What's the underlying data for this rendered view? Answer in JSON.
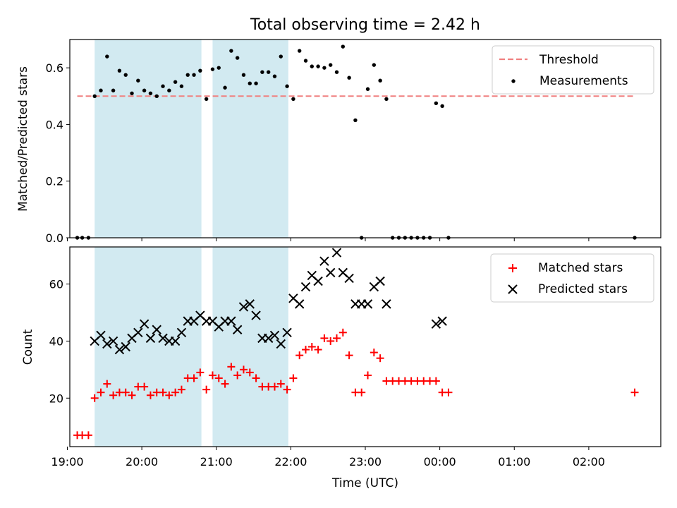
{
  "title": "Total observing time = 2.42 h",
  "colors": {
    "threshold": "#f08080",
    "measurement": "#000000",
    "matched": "#ff0000",
    "predicted": "#000000",
    "shade": "#add8e6"
  },
  "chart_data": [
    {
      "type": "scatter",
      "ylabel": "Matched/Predicted stars",
      "ylim": [
        0,
        0.7
      ],
      "yticks": [
        "0.0",
        "0.2",
        "0.4",
        "0.6"
      ],
      "xlim": [
        "19:02",
        "02:58"
      ],
      "shaded_intervals": [
        [
          "19:22",
          "20:48"
        ],
        [
          "20:57",
          "21:58"
        ]
      ],
      "legend": {
        "position": "top-right",
        "entries": [
          "Threshold",
          "Measurements"
        ]
      },
      "threshold": {
        "name": "Threshold",
        "value": 0.5,
        "x_range": [
          "19:08",
          "02:37"
        ]
      },
      "series": [
        {
          "name": "Measurements",
          "x": [
            "19:08",
            "19:12",
            "19:17",
            "19:22",
            "19:27",
            "19:32",
            "19:37",
            "19:42",
            "19:47",
            "19:52",
            "19:57",
            "20:02",
            "20:07",
            "20:12",
            "20:17",
            "20:22",
            "20:27",
            "20:32",
            "20:37",
            "20:42",
            "20:47",
            "20:52",
            "20:57",
            "21:02",
            "21:07",
            "21:12",
            "21:17",
            "21:22",
            "21:27",
            "21:32",
            "21:37",
            "21:42",
            "21:47",
            "21:52",
            "21:57",
            "22:02",
            "22:07",
            "22:12",
            "22:17",
            "22:22",
            "22:27",
            "22:32",
            "22:37",
            "22:42",
            "22:47",
            "22:52",
            "22:57",
            "23:02",
            "23:07",
            "23:12",
            "23:17",
            "23:22",
            "23:27",
            "23:32",
            "23:37",
            "23:42",
            "23:47",
            "23:52",
            "23:57",
            "00:02",
            "00:07",
            "02:37"
          ],
          "y": [
            0.0,
            0.0,
            0.0,
            0.5,
            0.52,
            0.64,
            0.52,
            0.59,
            0.575,
            0.51,
            0.555,
            0.52,
            0.51,
            0.5,
            0.535,
            0.52,
            0.55,
            0.535,
            0.575,
            0.575,
            0.59,
            0.49,
            0.595,
            0.6,
            0.53,
            0.66,
            0.635,
            0.575,
            0.545,
            0.545,
            0.585,
            0.585,
            0.57,
            0.64,
            0.535,
            0.49,
            0.66,
            0.625,
            0.605,
            0.605,
            0.6,
            0.61,
            0.585,
            0.675,
            0.565,
            0.415,
            0.0,
            0.525,
            0.61,
            0.555,
            0.49,
            0.0,
            0.0,
            0.0,
            0.0,
            0.0,
            0.0,
            0.0,
            0.475,
            0.465,
            0.0,
            0.0
          ]
        }
      ]
    },
    {
      "type": "scatter",
      "xlabel": "Time (UTC)",
      "ylabel": "Count",
      "ylim": [
        3,
        73
      ],
      "yticks": [
        "20",
        "40",
        "60"
      ],
      "xlim": [
        "19:02",
        "02:58"
      ],
      "xticks": [
        "19:00",
        "20:00",
        "21:00",
        "22:00",
        "23:00",
        "00:00",
        "01:00",
        "02:00"
      ],
      "shaded_intervals": [
        [
          "19:22",
          "20:48"
        ],
        [
          "20:57",
          "21:58"
        ]
      ],
      "legend": {
        "position": "top-right",
        "entries": [
          "Matched stars",
          "Predicted stars"
        ]
      },
      "series": [
        {
          "name": "Matched stars",
          "x": [
            "19:08",
            "19:12",
            "19:17",
            "19:22",
            "19:27",
            "19:32",
            "19:37",
            "19:42",
            "19:47",
            "19:52",
            "19:57",
            "20:02",
            "20:07",
            "20:12",
            "20:17",
            "20:22",
            "20:27",
            "20:32",
            "20:37",
            "20:42",
            "20:47",
            "20:52",
            "20:57",
            "21:02",
            "21:07",
            "21:12",
            "21:17",
            "21:22",
            "21:27",
            "21:32",
            "21:37",
            "21:42",
            "21:47",
            "21:52",
            "21:57",
            "22:02",
            "22:07",
            "22:12",
            "22:17",
            "22:22",
            "22:27",
            "22:32",
            "22:37",
            "22:42",
            "22:47",
            "22:52",
            "22:57",
            "23:02",
            "23:07",
            "23:12",
            "23:17",
            "23:22",
            "23:27",
            "23:32",
            "23:37",
            "23:42",
            "23:47",
            "23:52",
            "23:57",
            "00:02",
            "00:07",
            "02:37"
          ],
          "y": [
            7,
            7,
            7,
            20,
            22,
            25,
            21,
            22,
            22,
            21,
            24,
            24,
            21,
            22,
            22,
            21,
            22,
            23,
            27,
            27,
            29,
            23,
            28,
            27,
            25,
            31,
            28,
            30,
            29,
            27,
            24,
            24,
            24,
            25,
            23,
            27,
            35,
            37,
            38,
            37,
            41,
            40,
            41,
            43,
            35,
            22,
            22,
            28,
            36,
            34,
            26,
            26,
            26,
            26,
            26,
            26,
            26,
            26,
            26,
            22,
            22,
            22
          ]
        },
        {
          "name": "Predicted stars",
          "x": [
            "19:22",
            "19:27",
            "19:32",
            "19:37",
            "19:42",
            "19:47",
            "19:52",
            "19:57",
            "20:02",
            "20:07",
            "20:12",
            "20:17",
            "20:22",
            "20:27",
            "20:32",
            "20:37",
            "20:42",
            "20:47",
            "20:52",
            "20:57",
            "21:02",
            "21:07",
            "21:12",
            "21:17",
            "21:22",
            "21:27",
            "21:32",
            "21:37",
            "21:42",
            "21:47",
            "21:52",
            "21:57",
            "22:02",
            "22:07",
            "22:12",
            "22:17",
            "22:22",
            "22:27",
            "22:32",
            "22:37",
            "22:42",
            "22:47",
            "22:52",
            "22:57",
            "23:02",
            "23:07",
            "23:12",
            "23:17",
            "23:57",
            "00:02"
          ],
          "y": [
            40,
            42,
            39,
            40,
            37,
            38,
            41,
            43,
            46,
            41,
            44,
            41,
            40,
            40,
            43,
            47,
            47,
            49,
            47,
            47,
            45,
            47,
            47,
            44,
            52,
            53,
            49,
            41,
            41,
            42,
            39,
            43,
            55,
            53,
            59,
            63,
            61,
            68,
            64,
            71,
            64,
            62,
            53,
            53,
            53,
            59,
            61,
            53,
            46,
            47
          ]
        }
      ]
    }
  ]
}
